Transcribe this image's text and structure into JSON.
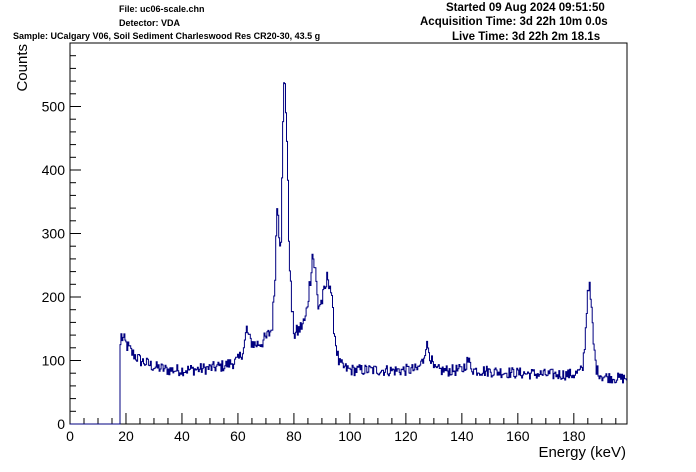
{
  "header": {
    "file": "File: uc06-scale.chn",
    "detector": "Detector: VDA",
    "sample": "Sample: UCalgary V06, Soil Sediment Charleswood Res CR20-30, 43.5 g",
    "started": "Started 09 Aug 2024 09:51:50",
    "acquisition": "Acquisition Time: 3d 22h 10m 0.0s",
    "live": "Live Time: 3d 22h 2m 18.1s"
  },
  "chart_data": {
    "type": "line",
    "xlabel": "Energy (keV)",
    "ylabel": "Counts",
    "xlim": [
      0,
      199
    ],
    "ylim": [
      0,
      560
    ],
    "x_ticks": [
      0,
      20,
      40,
      60,
      80,
      100,
      120,
      140,
      160,
      180
    ],
    "y_ticks": [
      0,
      100,
      200,
      300,
      400,
      500
    ],
    "line_color": "#000080",
    "grid": false,
    "series": [
      {
        "points": [
          [
            0,
            0
          ],
          [
            17.5,
            0
          ],
          [
            17.8,
            120
          ],
          [
            18,
            140
          ],
          [
            20,
            125
          ],
          [
            22,
            112
          ],
          [
            25,
            100
          ],
          [
            30,
            90
          ],
          [
            35,
            85
          ],
          [
            40,
            85
          ],
          [
            45,
            86
          ],
          [
            50,
            88
          ],
          [
            55,
            92
          ],
          [
            60,
            100
          ],
          [
            62,
            120
          ],
          [
            63,
            150
          ],
          [
            64,
            132
          ],
          [
            66,
            125
          ],
          [
            68,
            128
          ],
          [
            70,
            135
          ],
          [
            72,
            150
          ],
          [
            73,
            220
          ],
          [
            74,
            365
          ],
          [
            74.7,
            290
          ],
          [
            75.3,
            300
          ],
          [
            76,
            480
          ],
          [
            76.5,
            560
          ],
          [
            77.2,
            480
          ],
          [
            78,
            300
          ],
          [
            79,
            185
          ],
          [
            80,
            140
          ],
          [
            82,
            150
          ],
          [
            84,
            165
          ],
          [
            85.5,
            220
          ],
          [
            86.5,
            270
          ],
          [
            87.5,
            240
          ],
          [
            88.5,
            185
          ],
          [
            90,
            195
          ],
          [
            91,
            210
          ],
          [
            92,
            235
          ],
          [
            93,
            215
          ],
          [
            94,
            160
          ],
          [
            95,
            120
          ],
          [
            96,
            95
          ],
          [
            98,
            88
          ],
          [
            100,
            85
          ],
          [
            105,
            85
          ],
          [
            110,
            85
          ],
          [
            115,
            84
          ],
          [
            120,
            85
          ],
          [
            124,
            86
          ],
          [
            126,
            100
          ],
          [
            127,
            125
          ],
          [
            128,
            118
          ],
          [
            129,
            100
          ],
          [
            130,
            85
          ],
          [
            135,
            84
          ],
          [
            140,
            85
          ],
          [
            142,
            100
          ],
          [
            144,
            85
          ],
          [
            150,
            83
          ],
          [
            160,
            80
          ],
          [
            170,
            78
          ],
          [
            180,
            78
          ],
          [
            183,
            85
          ],
          [
            184,
            140
          ],
          [
            185,
            230
          ],
          [
            186,
            190
          ],
          [
            187,
            120
          ],
          [
            188,
            85
          ],
          [
            190,
            75
          ],
          [
            195,
            72
          ],
          [
            199,
            72
          ]
        ]
      }
    ]
  }
}
